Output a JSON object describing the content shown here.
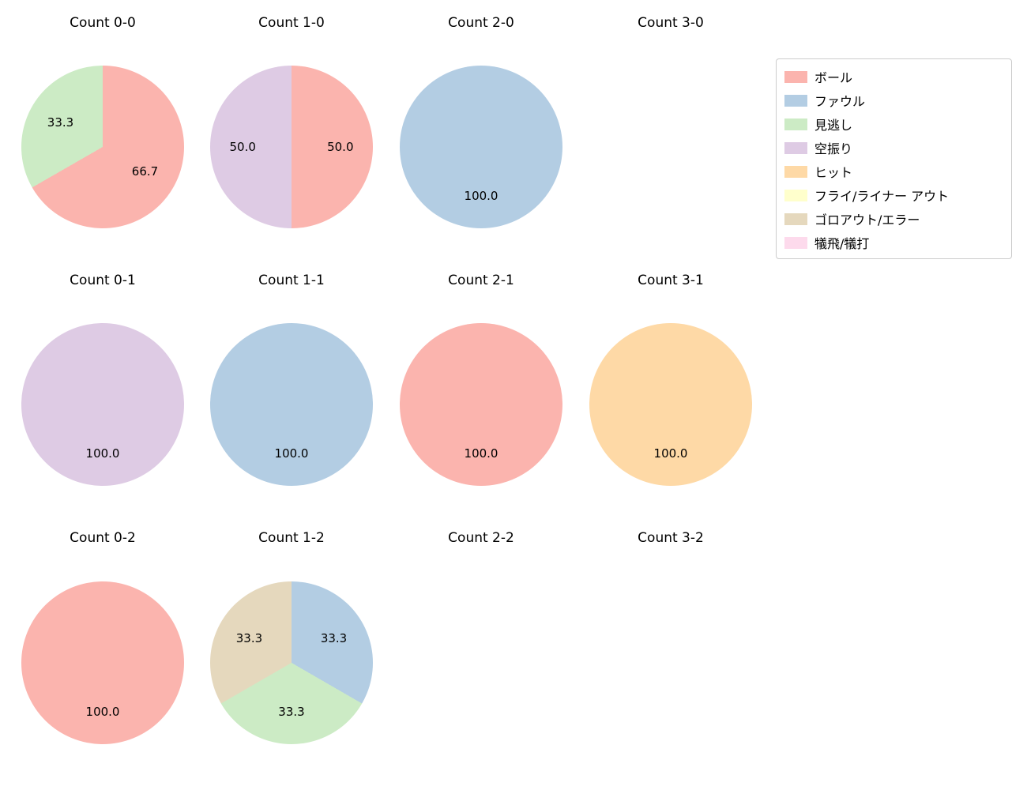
{
  "figure": {
    "background_color": "#ffffff"
  },
  "legend": {
    "position": "upper right",
    "items": [
      {
        "label": "ボール",
        "color": "#fbb4ae"
      },
      {
        "label": "ファウル",
        "color": "#b3cde3"
      },
      {
        "label": "見逃し",
        "color": "#ccebc5"
      },
      {
        "label": "空振り",
        "color": "#decbe4"
      },
      {
        "label": "ヒット",
        "color": "#fed9a6"
      },
      {
        "label": "フライ/ライナー アウト",
        "color": "#ffffcc"
      },
      {
        "label": "ゴロアウト/エラー",
        "color": "#e5d8bd"
      },
      {
        "label": "犠飛/犠打",
        "color": "#fddaec"
      }
    ]
  },
  "chart_data": [
    {
      "type": "pie",
      "title": "Count 0-0",
      "labels": [
        "ボール",
        "見逃し"
      ],
      "values": [
        66.7,
        33.3
      ],
      "pct_labels": [
        "66.7",
        "33.3"
      ],
      "colors": [
        "#fbb4ae",
        "#ccebc5"
      ]
    },
    {
      "type": "pie",
      "title": "Count 1-0",
      "labels": [
        "ボール",
        "空振り"
      ],
      "values": [
        50.0,
        50.0
      ],
      "pct_labels": [
        "50.0",
        "50.0"
      ],
      "colors": [
        "#fbb4ae",
        "#decbe4"
      ]
    },
    {
      "type": "pie",
      "title": "Count 2-0",
      "labels": [
        "ファウル"
      ],
      "values": [
        100.0
      ],
      "pct_labels": [
        "100.0"
      ],
      "colors": [
        "#b3cde3"
      ]
    },
    {
      "type": "pie",
      "title": "Count 3-0",
      "labels": [],
      "values": [],
      "pct_labels": [],
      "colors": []
    },
    {
      "type": "pie",
      "title": "Count 0-1",
      "labels": [
        "空振り"
      ],
      "values": [
        100.0
      ],
      "pct_labels": [
        "100.0"
      ],
      "colors": [
        "#decbe4"
      ]
    },
    {
      "type": "pie",
      "title": "Count 1-1",
      "labels": [
        "ファウル"
      ],
      "values": [
        100.0
      ],
      "pct_labels": [
        "100.0"
      ],
      "colors": [
        "#b3cde3"
      ]
    },
    {
      "type": "pie",
      "title": "Count 2-1",
      "labels": [
        "ボール"
      ],
      "values": [
        100.0
      ],
      "pct_labels": [
        "100.0"
      ],
      "colors": [
        "#fbb4ae"
      ]
    },
    {
      "type": "pie",
      "title": "Count 3-1",
      "labels": [
        "ヒット"
      ],
      "values": [
        100.0
      ],
      "pct_labels": [
        "100.0"
      ],
      "colors": [
        "#fed9a6"
      ]
    },
    {
      "type": "pie",
      "title": "Count 0-2",
      "labels": [
        "ボール"
      ],
      "values": [
        100.0
      ],
      "pct_labels": [
        "100.0"
      ],
      "colors": [
        "#fbb4ae"
      ]
    },
    {
      "type": "pie",
      "title": "Count 1-2",
      "labels": [
        "ファウル",
        "見逃し",
        "ゴロアウト/エラー"
      ],
      "values": [
        33.3,
        33.3,
        33.3
      ],
      "pct_labels": [
        "33.3",
        "33.3",
        "33.3"
      ],
      "colors": [
        "#b3cde3",
        "#ccebc5",
        "#e5d8bd"
      ]
    },
    {
      "type": "pie",
      "title": "Count 2-2",
      "labels": [],
      "values": [],
      "pct_labels": [],
      "colors": []
    },
    {
      "type": "pie",
      "title": "Count 3-2",
      "labels": [],
      "values": [],
      "pct_labels": [],
      "colors": []
    }
  ]
}
